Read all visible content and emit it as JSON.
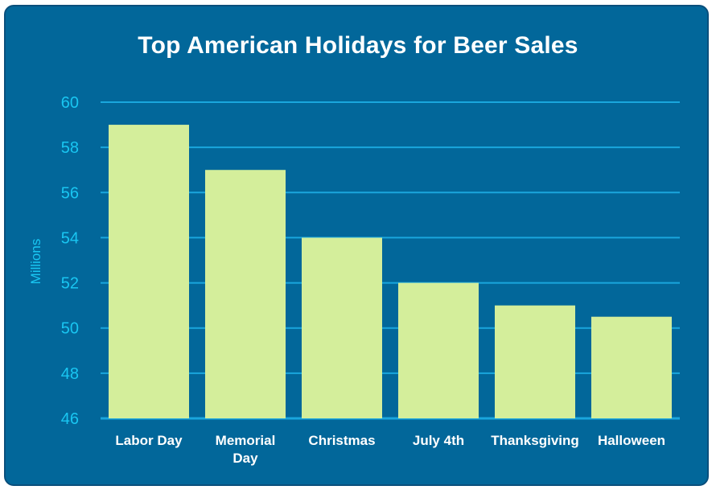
{
  "chart_data": {
    "type": "bar",
    "title": "Top American Holidays for Beer Sales",
    "ylabel": "Millions",
    "xlabel": "",
    "categories": [
      "Labor Day",
      "Memorial Day",
      "Christmas",
      "July 4th",
      "Thanksgiving",
      "Halloween"
    ],
    "category_lines": [
      [
        "Labor Day"
      ],
      [
        "Memorial",
        "Day"
      ],
      [
        "Christmas"
      ],
      [
        "July 4th"
      ],
      [
        "Thanksgiving"
      ],
      [
        "Halloween"
      ]
    ],
    "values": [
      59,
      57,
      54,
      52,
      51,
      50.5
    ],
    "ylim": [
      46,
      60
    ],
    "yticks": [
      46,
      48,
      50,
      52,
      54,
      56,
      58,
      60
    ],
    "grid": true,
    "colors": {
      "background": "#02679a",
      "bar": "#d4ee9b",
      "grid": "#1aa6dd",
      "axis_text": "#19c6f2",
      "category_text": "#ffffff",
      "title": "#ffffff"
    }
  }
}
